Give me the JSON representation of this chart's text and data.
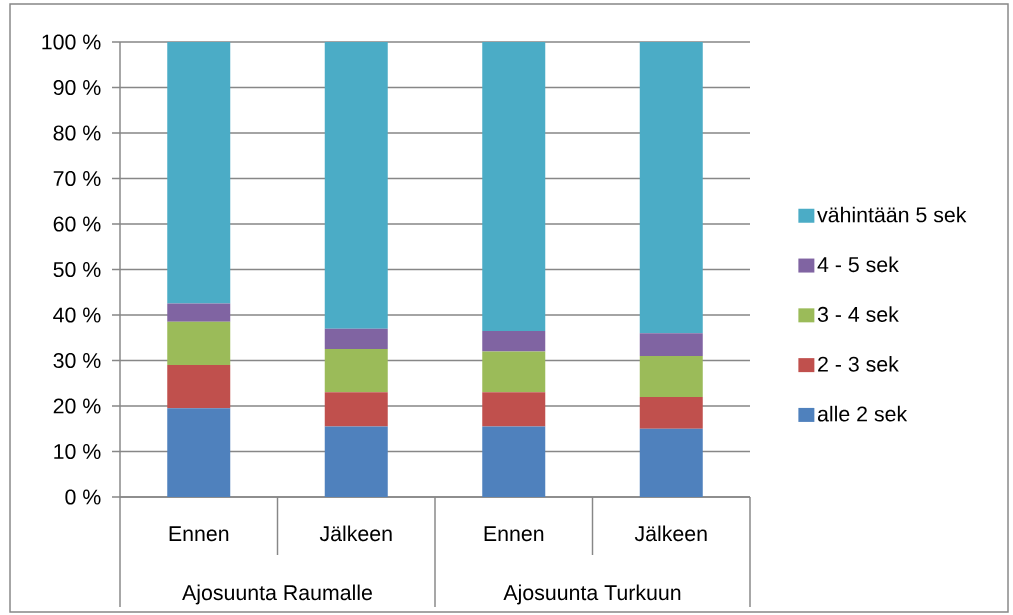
{
  "chart_data": {
    "type": "bar",
    "stacked": true,
    "categories": [
      "Ennen",
      "Jälkeen",
      "Ennen",
      "Jälkeen"
    ],
    "series": [
      {
        "name": "alle 2 sek",
        "color": "#4f81bd",
        "values": [
          19.5,
          15.5,
          15.5,
          15
        ]
      },
      {
        "name": "2 - 3 sek",
        "color": "#c0504d",
        "values": [
          9.5,
          7.5,
          7.5,
          7
        ]
      },
      {
        "name": "3 - 4 sek",
        "color": "#9bbb59",
        "values": [
          9.5,
          9.5,
          9,
          9
        ]
      },
      {
        "name": "4 - 5 sek",
        "color": "#8064a2",
        "values": [
          4,
          4.5,
          4.5,
          5
        ]
      },
      {
        "name": "vähintään 5 sek",
        "color": "#4bacc6",
        "values": [
          57.5,
          63,
          63.5,
          64
        ]
      }
    ],
    "ylim": [
      0,
      100
    ],
    "yticks": [
      {
        "value": 0,
        "label": "0 %"
      },
      {
        "value": 10,
        "label": "10 %"
      },
      {
        "value": 20,
        "label": "20 %"
      },
      {
        "value": 30,
        "label": "30 %"
      },
      {
        "value": 40,
        "label": "40 %"
      },
      {
        "value": 50,
        "label": "50 %"
      },
      {
        "value": 60,
        "label": "60 %"
      },
      {
        "value": 70,
        "label": "70 %"
      },
      {
        "value": 80,
        "label": "80 %"
      },
      {
        "value": 90,
        "label": "90 %"
      },
      {
        "value": 100,
        "label": "100 %"
      }
    ],
    "grid": "y",
    "legend": "right",
    "annotations": [
      "Ajosuunta Raumalle",
      "Ajosuunta Turkuun"
    ]
  }
}
